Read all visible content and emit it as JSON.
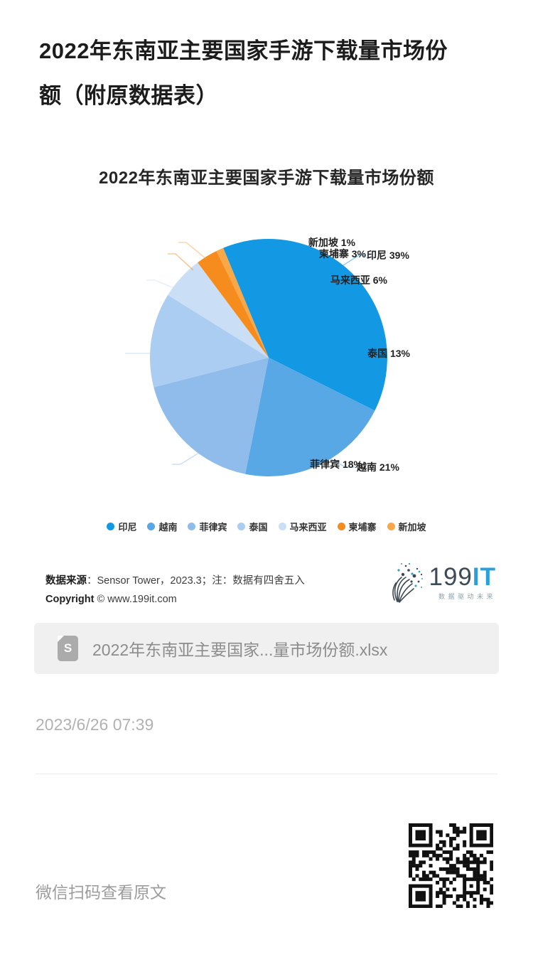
{
  "page": {
    "title": "2022年东南亚主要国家手游下载量市场份\n额（附原数据表）"
  },
  "chart_data": {
    "type": "pie",
    "title": "2022年东南亚主要国家手游下载量市场份额",
    "unit": "%",
    "series": [
      {
        "name": "印尼",
        "value": 39
      },
      {
        "name": "越南",
        "value": 21
      },
      {
        "name": "菲律宾",
        "value": 18
      },
      {
        "name": "泰国",
        "value": 13
      },
      {
        "name": "马来西亚",
        "value": 6
      },
      {
        "name": "柬埔寨",
        "value": 3
      },
      {
        "name": "新加坡",
        "value": 1
      }
    ],
    "colors": [
      "#1399e3",
      "#58a8e6",
      "#8fbceb",
      "#abcdf1",
      "#cadff6",
      "#f78c1e",
      "#f9a848"
    ],
    "start_angle": -22.5,
    "label_format": "{name} {value}%",
    "legend_position": "bottom",
    "note": "数据有四舍五入"
  },
  "source": {
    "label": "数据来源",
    "text": "：Sensor Tower，2023.3；注：数据有四舍五入",
    "copyright_label": "Copyright",
    "copyright_text": " © www.199it.com"
  },
  "logo": {
    "number": "199",
    "it": "IT",
    "tagline": "数据驱动未来"
  },
  "attachment": {
    "filename": "2022年东南亚主要国家...量市场份额.xlsx",
    "icon_letter": "S"
  },
  "meta": {
    "date": "2023/6/26 07:39"
  },
  "footer": {
    "scan_hint": "微信扫码查看原文"
  }
}
